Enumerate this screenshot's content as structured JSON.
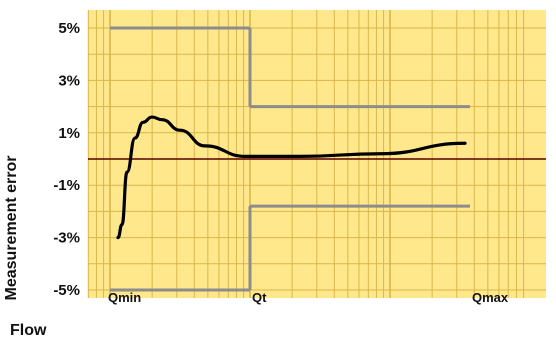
{
  "chart_data": {
    "type": "line",
    "title": "",
    "xlabel": "Flow",
    "ylabel": "Measurement error",
    "ylim": [
      -5,
      5
    ],
    "y_ticks": [
      "5%",
      "3%",
      "1%",
      "-1%",
      "-3%",
      "-5%"
    ],
    "y_tick_values": [
      5,
      3,
      1,
      -1,
      -3,
      -5
    ],
    "x_categories": [
      "Qmin",
      "Qt",
      "Qmax"
    ],
    "x_scale": "log",
    "grid": true,
    "series": [
      {
        "role": "error-curve",
        "color": "#000000",
        "points": [
          {
            "x": "Qmin",
            "y": -3.0
          },
          {
            "x": "Qmin",
            "y": -2.5
          },
          {
            "x": "Qmin",
            "y": -0.5
          },
          {
            "x": "Qmin",
            "y": 0.8
          },
          {
            "x": "Qmin",
            "y": 1.4
          },
          {
            "x": "Qmin",
            "y": 1.6
          },
          {
            "x": "Qmin",
            "y": 1.5
          },
          {
            "x": "Qmin",
            "y": 1.1
          },
          {
            "x": "Qmin",
            "y": 0.5
          },
          {
            "x": "Qt",
            "y": 0.1
          },
          {
            "x": "Qt",
            "y": 0.1
          },
          {
            "x": "Qt",
            "y": 0.2
          },
          {
            "x": "Qmax",
            "y": 0.6
          }
        ]
      },
      {
        "role": "upper-limit",
        "color": "#8c8c8c",
        "segments": [
          {
            "from": "Qmin",
            "to": "Qt",
            "y": 5
          },
          {
            "from": "Qt",
            "to": "Qmax",
            "y": 2
          }
        ]
      },
      {
        "role": "lower-limit",
        "color": "#8c8c8c",
        "segments": [
          {
            "from": "Qmin",
            "to": "Qt",
            "y": -5
          },
          {
            "from": "Qt",
            "to": "Qmax",
            "y": -1.8
          }
        ]
      }
    ],
    "zero_line": {
      "y": 0,
      "color": "#5a0000"
    },
    "colors": {
      "background": "#ffe88c",
      "grid": "#d9b64a",
      "curve": "#000000",
      "limits": "#8c8c8c",
      "zero_line": "#5a0000"
    }
  }
}
